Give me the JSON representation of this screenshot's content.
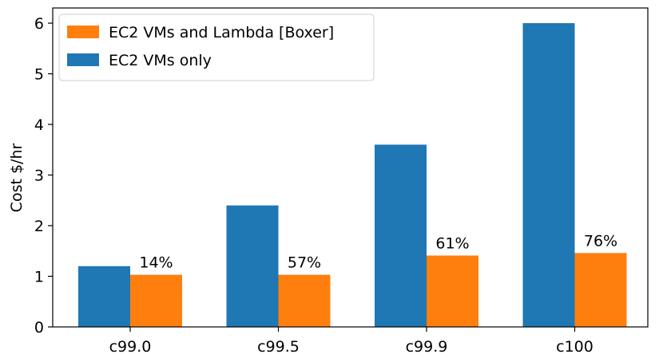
{
  "chart_data": {
    "type": "bar",
    "categories": [
      "c99.0",
      "c99.5",
      "c99.9",
      "c100"
    ],
    "series": [
      {
        "name": "EC2 VMs only",
        "color": "#1f77b4",
        "values": [
          1.2,
          2.4,
          3.6,
          6.0
        ]
      },
      {
        "name": "EC2 VMs and Lambda [Boxer]",
        "color": "#ff7f0e",
        "values": [
          1.03,
          1.03,
          1.41,
          1.46
        ]
      }
    ],
    "annotations": [
      "14%",
      "57%",
      "61%",
      "76%"
    ],
    "title": "",
    "xlabel": "",
    "ylabel": "Cost $/hr",
    "ylim": [
      0,
      6.3
    ],
    "yticks": [
      "0",
      "1",
      "2",
      "3",
      "4",
      "5",
      "6"
    ],
    "grid": false,
    "legend": {
      "placement": "top-left",
      "entries": [
        "EC2 VMs and Lambda [Boxer]",
        "EC2 VMs only"
      ],
      "colors": [
        "#ff7f0e",
        "#1f77b4"
      ]
    }
  }
}
